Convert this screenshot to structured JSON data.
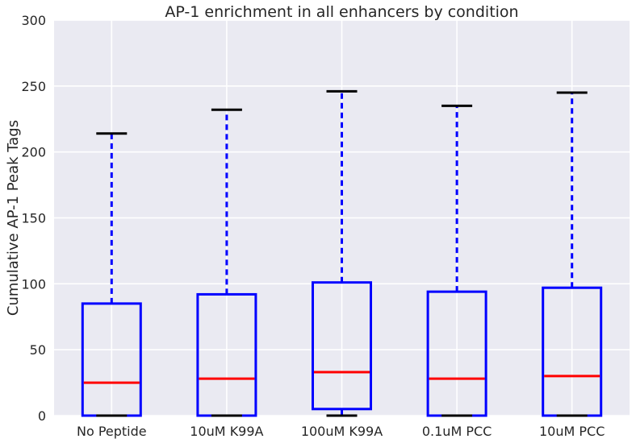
{
  "chart_data": {
    "type": "box",
    "title": "AP-1 enrichment in all enhancers by condition",
    "ylabel": "Cumulative AP-1 Peak Tags",
    "xlabel": "",
    "ylim": [
      0,
      300
    ],
    "yticks": [
      0,
      50,
      100,
      150,
      200,
      250,
      300
    ],
    "grid": true,
    "categories": [
      "No Peptide",
      "10uM K99A",
      "100uM K99A",
      "0.1uM PCC",
      "10uM PCC"
    ],
    "boxes": [
      {
        "whisker_low": 0,
        "q1": 0,
        "median": 25,
        "q3": 85,
        "whisker_high": 214
      },
      {
        "whisker_low": 0,
        "q1": 0,
        "median": 28,
        "q3": 92,
        "whisker_high": 232
      },
      {
        "whisker_low": 0,
        "q1": 5,
        "median": 33,
        "q3": 101,
        "whisker_high": 246
      },
      {
        "whisker_low": 0,
        "q1": 0,
        "median": 28,
        "q3": 94,
        "whisker_high": 235
      },
      {
        "whisker_low": 0,
        "q1": 0,
        "median": 30,
        "q3": 97,
        "whisker_high": 245
      }
    ],
    "colors": {
      "box": "#0000ff",
      "whisker": "#0000ff",
      "median": "#ff0000",
      "cap": "#000000",
      "plot_background": "#eaeaf2",
      "grid": "#ffffff",
      "text": "#262626"
    }
  }
}
